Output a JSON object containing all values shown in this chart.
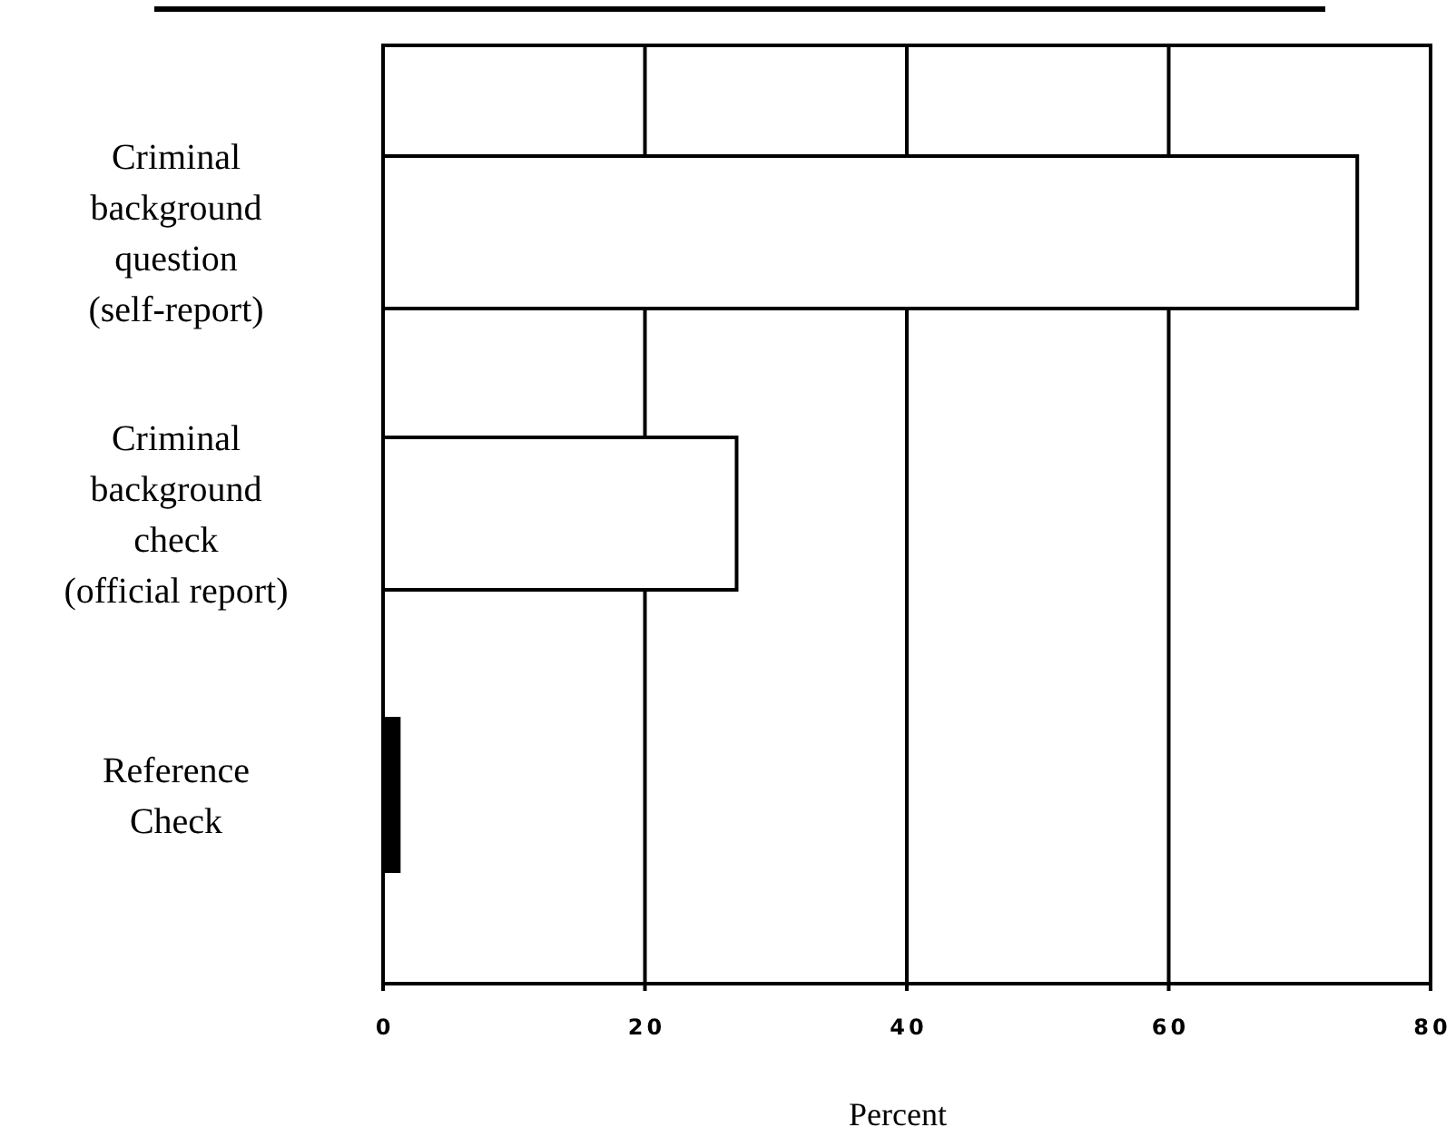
{
  "chart_data": {
    "type": "bar",
    "orientation": "horizontal",
    "categories": [
      "Criminal background question (self-report)",
      "Criminal background check (official report)",
      "Reference Check"
    ],
    "values": [
      74.4,
      27,
      1.2
    ],
    "colors": [
      "#ffffff",
      "#ffffff",
      "#000000"
    ],
    "xlim": [
      0,
      80
    ],
    "xticks": [
      0,
      20,
      40,
      60,
      80
    ],
    "xlabel": "Percent",
    "grid": "x"
  }
}
